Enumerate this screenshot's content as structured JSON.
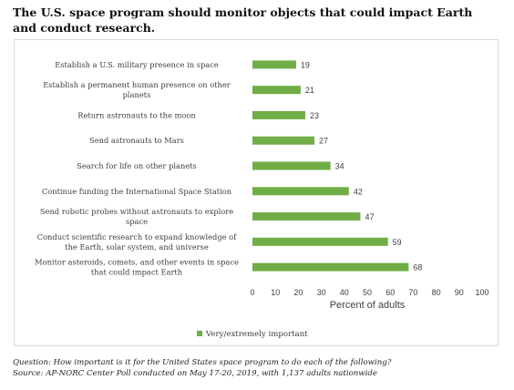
{
  "title": "The U.S. space program should monitor objects that could impact Earth and conduct research.",
  "question": "Question: How important is it for the United States space program to do each of the following?",
  "source": "Source: AP-NORC Center Poll conducted on May 17-20, 2019, with 1,137 adults nationwide",
  "colors": {
    "bar": "#70ad47",
    "text": "#404040"
  },
  "chart_data": {
    "type": "bar",
    "orientation": "horizontal",
    "categories": [
      [
        "Establish a U.S. military presence in space"
      ],
      [
        "Establish a permanent human presence on other",
        "planets"
      ],
      [
        "Return astronauts to the moon"
      ],
      [
        "Send astronauts to Mars"
      ],
      [
        "Search for life on other planets"
      ],
      [
        "Continue funding the International Space Station"
      ],
      [
        "Send robotic probes without astronauts to explore",
        "space"
      ],
      [
        "Conduct scientific research to expand knowledge of",
        "the Earth, solar system, and universe"
      ],
      [
        "Monitor asteroids, comets, and other events in space",
        "that could impact Earth"
      ]
    ],
    "series": [
      {
        "name": "Very/extremely important",
        "values": [
          19,
          21,
          23,
          27,
          34,
          42,
          47,
          59,
          68
        ]
      }
    ],
    "xlabel": "Percent of adults",
    "xlim": [
      0,
      100
    ],
    "xticks": [
      0,
      10,
      20,
      30,
      40,
      50,
      60,
      70,
      80,
      90,
      100
    ],
    "grid": false,
    "legend": "bottom-center",
    "data_labels": true
  }
}
